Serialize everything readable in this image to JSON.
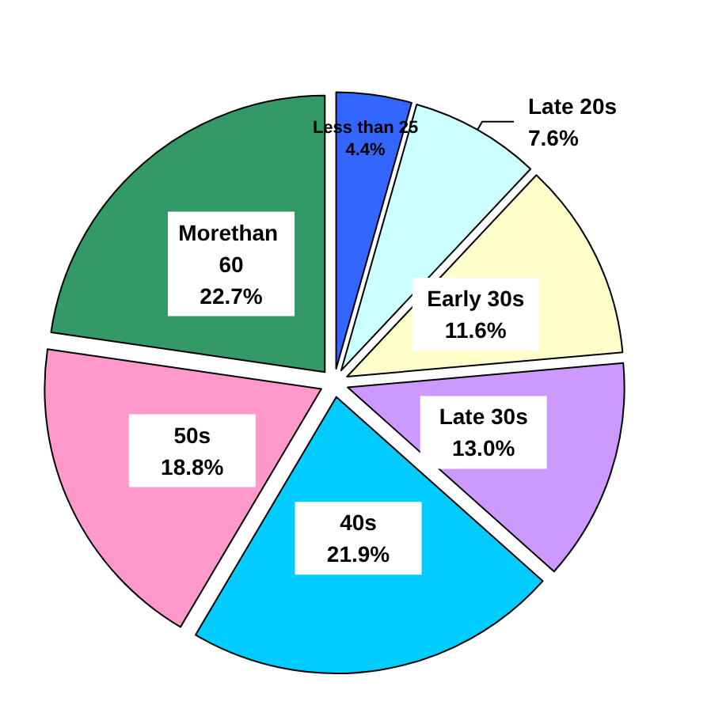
{
  "chart_data": {
    "type": "pie",
    "categories": [
      "Less than 25",
      "Late 20s",
      "Early 30s",
      "Late 30s",
      "40s",
      "50s",
      "Morethan 60"
    ],
    "values": [
      4.4,
      7.6,
      11.6,
      13.0,
      21.9,
      18.8,
      22.7
    ],
    "colors": [
      "#3366ff",
      "#ccffff",
      "#ffffcc",
      "#cc99ff",
      "#00ccff",
      "#ff99cc",
      "#339966"
    ],
    "value_labels": [
      "4.4%",
      "7.6%",
      "11.6%",
      "13.0%",
      "21.9%",
      "18.8%",
      "22.7%"
    ],
    "legend": false
  }
}
